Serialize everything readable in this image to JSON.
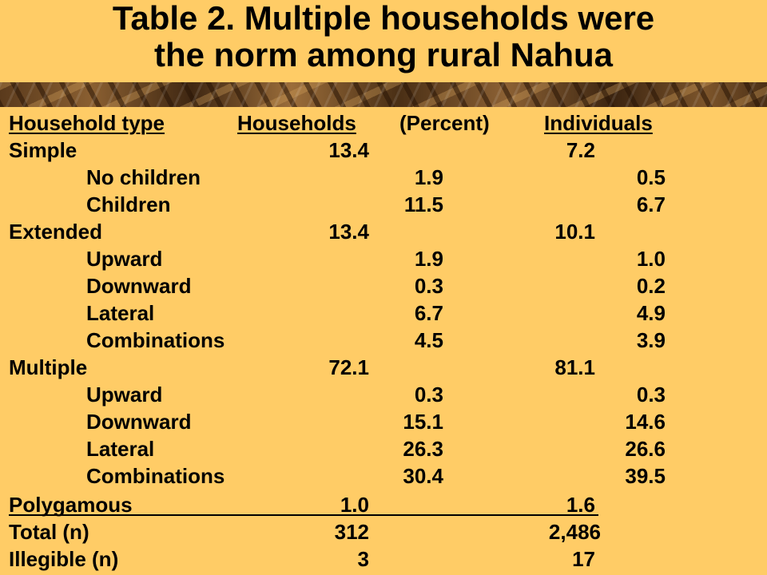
{
  "title": {
    "line1": "Table 2. Multiple households were",
    "line2": "the norm among rural Nahua"
  },
  "colors": {
    "background": "#FFCC66",
    "banner": "marble-brown"
  },
  "table": {
    "headers": [
      "Household type",
      "Households",
      "(Percent)",
      "Individuals"
    ],
    "rows": [
      {
        "label": "Simple",
        "households": "13.4",
        "individuals": " 7.2"
      },
      {
        "label": "No children",
        "households": " 1.9",
        "individuals": " 0.5"
      },
      {
        "label": "Children",
        "households": "11.5",
        "individuals": " 6.7"
      },
      {
        "label": "Extended",
        "households": "13.4",
        "individuals": "10.1"
      },
      {
        "label": "Upward",
        "households": " 1.9",
        "individuals": " 1.0"
      },
      {
        "label": "Downward",
        "households": " 0.3",
        "individuals": " 0.2"
      },
      {
        "label": "Lateral",
        "households": " 6.7",
        "individuals": " 4.9"
      },
      {
        "label": "Combinations",
        "households": " 4.5",
        "individuals": " 3.9"
      },
      {
        "label": "Multiple",
        "households": "72.1",
        "individuals": "81.1"
      },
      {
        "label": "Upward",
        "households": " 0.3",
        "individuals": "  0.3"
      },
      {
        "label": "Downward",
        "households": "15.1",
        "individuals": "14.6"
      },
      {
        "label": "Lateral",
        "households": "26.3",
        "individuals": "26.6"
      },
      {
        "label": "Combinations",
        "households": "30.4",
        "individuals": "39.5"
      },
      {
        "label": "Polygamous",
        "households": " 1.0",
        "individuals": " 1.6"
      },
      {
        "label": "Total (n)",
        "households": "312",
        "individuals": "2,486"
      },
      {
        "label": "Illegible (n)",
        "households": "3",
        "individuals": "17"
      }
    ]
  }
}
